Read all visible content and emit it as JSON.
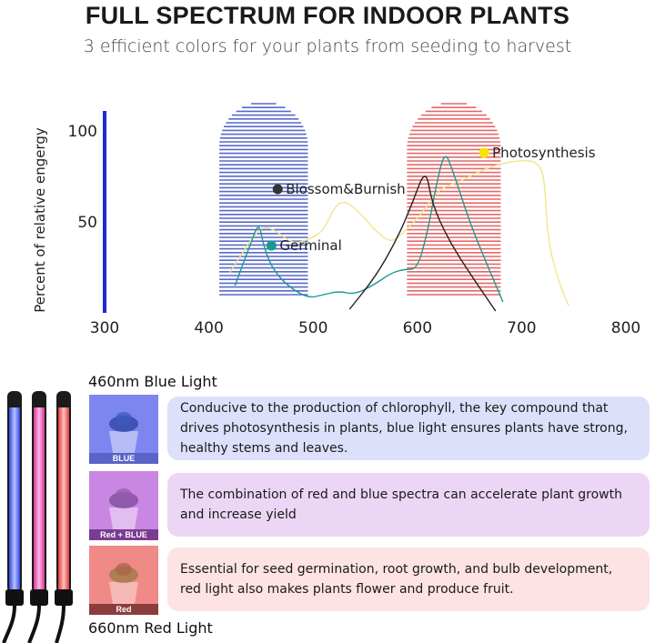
{
  "header": {
    "title": "FULL SPECTRUM FOR INDOOR PLANTS",
    "subtitle": "3 efficient colors for your plants from seeding to harvest"
  },
  "chart_data": {
    "type": "line",
    "xlabel": "",
    "ylabel": "Percent of relative engergy",
    "xlim": [
      300,
      800
    ],
    "ylim": [
      0,
      110
    ],
    "x_ticks": [
      "300",
      "400",
      "500",
      "600",
      "700",
      "800"
    ],
    "y_ticks": [
      "50",
      "100"
    ],
    "bands": [
      {
        "name": "blue-band",
        "x_range": [
          410,
          495
        ],
        "color": "#3b4fc0"
      },
      {
        "name": "red-band",
        "x_range": [
          590,
          680
        ],
        "color": "#e05050"
      }
    ],
    "annotations": [
      {
        "text": "Blossom&Burnish",
        "x": 466,
        "y": 68,
        "color": "#333333"
      },
      {
        "text": "Germinal",
        "x": 460,
        "y": 37,
        "color": "#1a9a90"
      },
      {
        "text": "Photosynthesis",
        "x": 664,
        "y": 88,
        "color": "#f5e600"
      }
    ],
    "series": [
      {
        "color": "#f0e68c",
        "points": [
          [
            420,
            22
          ],
          [
            440,
            40
          ],
          [
            452,
            48
          ],
          [
            465,
            45
          ],
          [
            480,
            38
          ],
          [
            495,
            40
          ],
          [
            510,
            45
          ],
          [
            520,
            58
          ],
          [
            530,
            62
          ],
          [
            545,
            55
          ],
          [
            560,
            45
          ],
          [
            575,
            38
          ],
          [
            590,
            46
          ],
          [
            605,
            55
          ],
          [
            620,
            68
          ],
          [
            640,
            72
          ],
          [
            660,
            78
          ],
          [
            680,
            82
          ],
          [
            700,
            84
          ],
          [
            715,
            83
          ],
          [
            722,
            75
          ],
          [
            725,
            40
          ],
          [
            735,
            18
          ],
          [
            745,
            4
          ]
        ]
      },
      {
        "color": "#1a9a90",
        "points": [
          [
            425,
            15
          ],
          [
            440,
            38
          ],
          [
            448,
            50
          ],
          [
            452,
            38
          ],
          [
            460,
            25
          ],
          [
            475,
            15
          ],
          [
            495,
            8
          ],
          [
            510,
            10
          ],
          [
            525,
            12
          ],
          [
            540,
            10
          ],
          [
            560,
            16
          ],
          [
            575,
            22
          ],
          [
            588,
            24
          ],
          [
            600,
            24
          ],
          [
            610,
            45
          ],
          [
            618,
            70
          ],
          [
            626,
            89
          ],
          [
            633,
            80
          ],
          [
            650,
            50
          ],
          [
            668,
            25
          ],
          [
            682,
            6
          ]
        ]
      },
      {
        "color": "#222222",
        "points": [
          [
            535,
            2
          ],
          [
            560,
            20
          ],
          [
            580,
            40
          ],
          [
            595,
            60
          ],
          [
            608,
            80
          ],
          [
            614,
            60
          ],
          [
            630,
            40
          ],
          [
            650,
            22
          ],
          [
            675,
            1
          ]
        ]
      }
    ]
  },
  "lights": {
    "blue_heading": "460nm Blue Light",
    "red_heading": "660nm Red Light"
  },
  "rows": [
    {
      "caption": "BLUE",
      "text": "Conducive to the production of chlorophyll, the key compound that drives photosynthesis in plants, blue light ensures plants have strong, healthy stems and leaves.",
      "bg": "#dde0fb",
      "thumb": "#7d86ef",
      "capbg": "#5b63c7"
    },
    {
      "caption": "Red + BLUE",
      "text": "The combination of red and blue spectra can accelerate plant growth and increase yield",
      "bg": "#ebd7f5",
      "thumb": "#c987e3",
      "capbg": "#7a3c91"
    },
    {
      "caption": "Red",
      "text": "Essential for seed germination, root growth, and bulb development, red light also makes plants flower and produce fruit.",
      "bg": "#fde3e3",
      "thumb": "#f08a86",
      "capbg": "#8b3d3b"
    }
  ]
}
